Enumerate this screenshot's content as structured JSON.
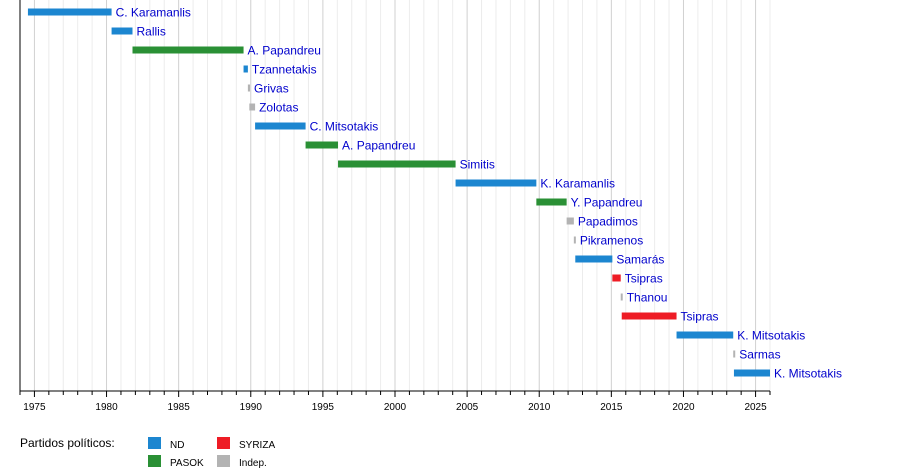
{
  "chart_data": {
    "type": "timeline",
    "xlim": [
      1974,
      2026
    ],
    "major_ticks": [
      1975,
      1980,
      1985,
      1990,
      1995,
      2000,
      2005,
      2010,
      2015,
      2020,
      2025
    ],
    "grid": true,
    "parties": [
      {
        "key": "ND",
        "label": "ND",
        "color": "#1c86d0"
      },
      {
        "key": "SYRIZA",
        "label": "SYRIZA",
        "color": "#ee1c25"
      },
      {
        "key": "PASOK",
        "label": "PASOK",
        "color": "#2a9035"
      },
      {
        "key": "Indep",
        "label": "Indep.",
        "color": "#b3b3b3"
      }
    ],
    "legend_title": "Partidos políticos:",
    "legend_position": "bottom-left",
    "rows": [
      {
        "name": "C. Karamanlis",
        "start": 1974.55,
        "end": 1980.35,
        "party": "ND"
      },
      {
        "name": "Rallis",
        "start": 1980.35,
        "end": 1981.8,
        "party": "ND"
      },
      {
        "name": "A. Papandreu",
        "start": 1981.8,
        "end": 1989.5,
        "party": "PASOK"
      },
      {
        "name": "Tzannetakis",
        "start": 1989.5,
        "end": 1989.8,
        "party": "ND"
      },
      {
        "name": "Grivas",
        "start": 1989.8,
        "end": 1989.95,
        "party": "Indep"
      },
      {
        "name": "Zolotas",
        "start": 1989.9,
        "end": 1990.3,
        "party": "Indep"
      },
      {
        "name": "C. Mitsotakis",
        "start": 1990.3,
        "end": 1993.8,
        "party": "ND"
      },
      {
        "name": "A. Papandreu",
        "start": 1993.8,
        "end": 1996.05,
        "party": "PASOK"
      },
      {
        "name": "Simitis",
        "start": 1996.05,
        "end": 2004.2,
        "party": "PASOK"
      },
      {
        "name": "K. Karamanlis",
        "start": 2004.2,
        "end": 2009.8,
        "party": "ND"
      },
      {
        "name": "Y. Papandreu",
        "start": 2009.8,
        "end": 2011.9,
        "party": "PASOK"
      },
      {
        "name": "Papadimos",
        "start": 2011.9,
        "end": 2012.4,
        "party": "Indep"
      },
      {
        "name": "Pikramenos",
        "start": 2012.4,
        "end": 2012.5,
        "party": "Indep"
      },
      {
        "name": "Samarás",
        "start": 2012.5,
        "end": 2015.07,
        "party": "ND"
      },
      {
        "name": "Tsipras",
        "start": 2015.07,
        "end": 2015.65,
        "party": "SYRIZA"
      },
      {
        "name": "Thanou",
        "start": 2015.65,
        "end": 2015.72,
        "party": "Indep"
      },
      {
        "name": "Tsipras",
        "start": 2015.72,
        "end": 2019.52,
        "party": "SYRIZA"
      },
      {
        "name": "K. Mitsotakis",
        "start": 2019.52,
        "end": 2023.45,
        "party": "ND"
      },
      {
        "name": "Sarmas",
        "start": 2023.45,
        "end": 2023.5,
        "party": "Indep"
      },
      {
        "name": "K. Mitsotakis",
        "start": 2023.5,
        "end": 2026,
        "party": "ND"
      }
    ]
  }
}
